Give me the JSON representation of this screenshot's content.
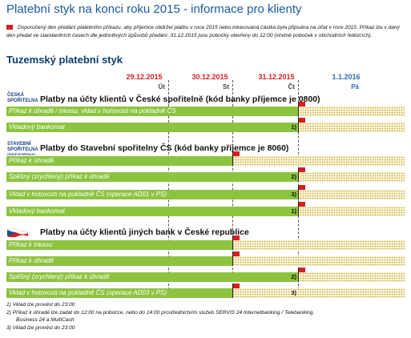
{
  "header": {
    "title": "Platební styk na konci roku 2015 - informace pro klienty",
    "intro": "Doporučený den předání platebního příkazu, aby příjemce obdržel platbu v roce 2015 nebo inkasovaná částka byla připsána na účet v roce 2015. Příkaz lze v daný den předat ve standardních časech dle jednotlivých způsobů předání. 31.12.2015 jsou pobočky otevřeny do 12:00 (včetně poboček v obchodních řetězcích)."
  },
  "section": "Tuzemský platební styk",
  "dates": [
    {
      "date": "29.12.2015",
      "day": "Út"
    },
    {
      "date": "30.12.2015",
      "day": "St"
    },
    {
      "date": "31.12.2015",
      "day": "Čt"
    },
    {
      "date": "1.1.2016",
      "day": "Pá"
    }
  ],
  "groups": [
    {
      "logo": [
        "ČESKÁ",
        "SPOŘITELNA"
      ],
      "title": "Platby na účty klientů v České spořitelně (kód banky příjemce je 0800)",
      "rows": [
        {
          "label": "Příkaz k úhradě / inkasu, vklad v hotovosti na pokladně ČS"
        },
        {
          "label": "Vkladový bankomat",
          "note": "1)"
        }
      ]
    },
    {
      "logo": [
        "STAVEBNÍ",
        "SPOŘITELNA",
        "ČESKÉ SPOŘITELNY"
      ],
      "title": "Platby do Stavební spořitelny ČS (kód banky příjemce je 8060)",
      "rows": [
        {
          "label": "Příkaz k úhradě"
        },
        {
          "label": "Spěšný (zrychlený) příkaz k úhradě",
          "note": "2)"
        },
        {
          "label": "Vklad v hotovosti na pokladně ČS (operace AD01 v PS)",
          "note": "3)"
        },
        {
          "label": "Vkladový bankomat",
          "note": "1)"
        }
      ]
    },
    {
      "title": "Platby na účty klientů jiných bank v České republice",
      "rows": [
        {
          "label": "Příkaz k inkasu"
        },
        {
          "label": "Příkaz k úhradě"
        },
        {
          "label": "Spěšný (zrychlený) příkaz k úhradě",
          "note": "2)"
        },
        {
          "label": "Vklad v hotovosti na pokladně ČS (operace AD03 v PS)",
          "note": "3)"
        }
      ]
    }
  ],
  "footnotes": [
    "1) Vklad lze provést do 23:00",
    "2) Příkaz k úhradě lze zadat do 12:00 na pobočce, nebo do 14:00 prostřednictvím služeb SERVIS 24 Internetbanking / Telebanking,",
    "Business 24 a MultiCash",
    "3) Vklad lze provést do 23:00"
  ]
}
